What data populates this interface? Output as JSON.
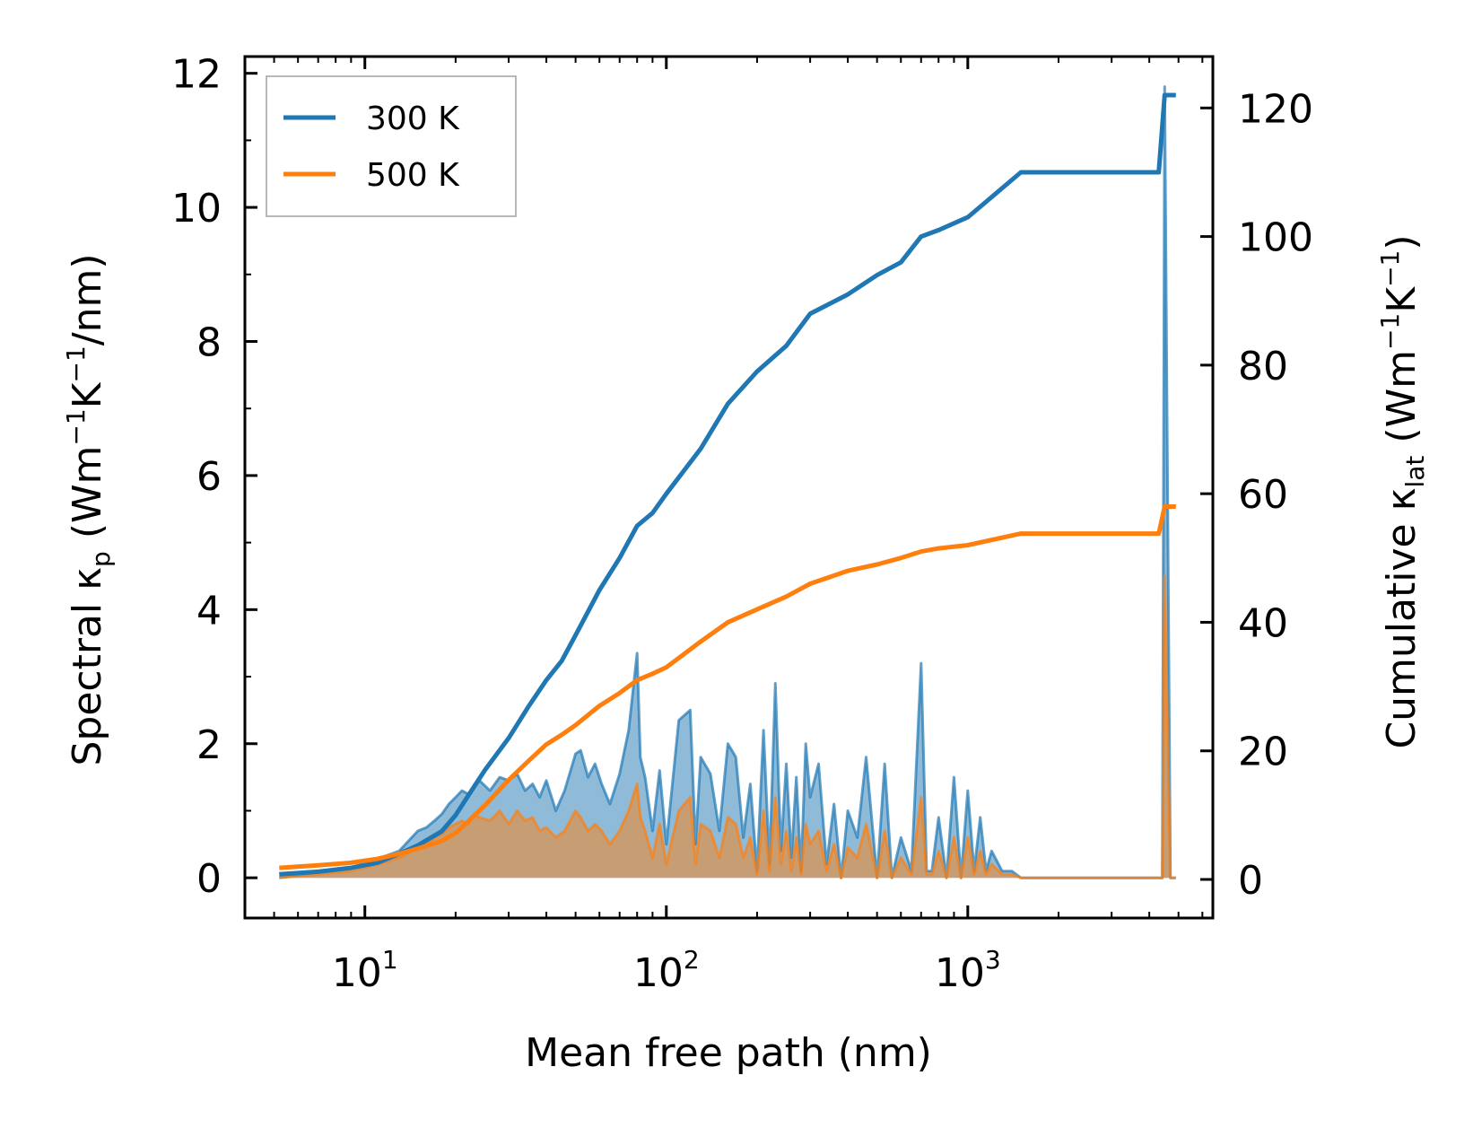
{
  "chart_data": {
    "type": "line",
    "xscale": "log",
    "xlabel": "Mean free path (nm)",
    "xlim": [
      4.0,
      6500
    ],
    "x_ticks": [
      {
        "value": 10,
        "base": "10",
        "exp": "1"
      },
      {
        "value": 100,
        "base": "10",
        "exp": "2"
      },
      {
        "value": 1000,
        "base": "10",
        "exp": "3"
      }
    ],
    "ylabel_left": {
      "prefix": "Spectral κ",
      "sub": "p",
      "mid1": " (Wm",
      "sup1": "−1",
      "mid2": "K",
      "sup2": "−1",
      "suffix": "/nm)"
    },
    "ylim_left": [
      -0.6,
      12.25
    ],
    "left_ticks": [
      "0",
      "2",
      "4",
      "6",
      "8",
      "10",
      "12"
    ],
    "ylabel_right": {
      "prefix": "Cumulative κ",
      "sub": "lat",
      "mid1": " (Wm",
      "sup1": "−1",
      "mid2": "K",
      "sup2": "−1",
      "suffix": ")"
    },
    "ylim_right": [
      -6,
      128
    ],
    "right_ticks": [
      "0",
      "20",
      "40",
      "60",
      "80",
      "100",
      "120"
    ],
    "legend": {
      "position": "top-left",
      "entries": [
        "300 K",
        "500 K"
      ]
    },
    "colors": {
      "t300": "#1f77b4",
      "t500": "#ff7f0e"
    },
    "series_cumulative": [
      {
        "name": "300 K",
        "axis": "right",
        "x": [
          5.2,
          7,
          9,
          11,
          13,
          15,
          18,
          20,
          22,
          25,
          30,
          35,
          40,
          45,
          50,
          60,
          70,
          80,
          90,
          100,
          130,
          160,
          200,
          250,
          300,
          400,
          500,
          600,
          700,
          800,
          1000,
          1500,
          4300,
          4500,
          4900
        ],
        "y": [
          0.8,
          1.2,
          1.8,
          2.6,
          4.0,
          5.3,
          7.5,
          10,
          13,
          17,
          22,
          27,
          31,
          34,
          38,
          45,
          50,
          55,
          57,
          60,
          67,
          74,
          79,
          83,
          88,
          91,
          94,
          96,
          100,
          101,
          103,
          110,
          110,
          122,
          122
        ]
      },
      {
        "name": "500 K",
        "axis": "right",
        "x": [
          5.2,
          7,
          9,
          11,
          13,
          15,
          18,
          20,
          22,
          25,
          30,
          35,
          40,
          45,
          50,
          60,
          70,
          80,
          90,
          100,
          130,
          160,
          200,
          250,
          300,
          400,
          500,
          600,
          700,
          800,
          1000,
          1500,
          4300,
          4500,
          4900
        ],
        "y": [
          1.8,
          2.2,
          2.6,
          3.2,
          4.0,
          4.8,
          6.0,
          7.2,
          9.0,
          11.5,
          15.5,
          18.5,
          21,
          22.5,
          24,
          27,
          29,
          31,
          32,
          33,
          37,
          40,
          42,
          44,
          46,
          48,
          49,
          50,
          51,
          51.5,
          52,
          53.8,
          53.8,
          58,
          58
        ]
      }
    ],
    "series_spectral": [
      {
        "name": "300 K",
        "axis": "left",
        "x": [
          5.2,
          7,
          9,
          11,
          13,
          15,
          16,
          17,
          18,
          19,
          20,
          21,
          22,
          23,
          24,
          26,
          28,
          30,
          32,
          34,
          36,
          38,
          40,
          43,
          46,
          50,
          52,
          55,
          58,
          61,
          65,
          70,
          75,
          80,
          82,
          85,
          90,
          95,
          100,
          110,
          120,
          125,
          130,
          140,
          150,
          160,
          170,
          180,
          190,
          200,
          210,
          220,
          230,
          240,
          250,
          260,
          270,
          280,
          290,
          300,
          320,
          340,
          360,
          380,
          400,
          430,
          460,
          500,
          530,
          560,
          600,
          650,
          700,
          730,
          760,
          800,
          850,
          900,
          950,
          1000,
          1050,
          1100,
          1150,
          1200,
          1300,
          1400,
          1500,
          4300,
          4420,
          4500,
          4700,
          4900
        ],
        "y": [
          0,
          0.08,
          0.15,
          0.28,
          0.4,
          0.7,
          0.75,
          0.85,
          0.95,
          1.1,
          1.2,
          1.3,
          1.25,
          1.35,
          1.45,
          1.3,
          1.5,
          1.45,
          1.55,
          1.3,
          1.4,
          1.2,
          1.45,
          1.0,
          1.3,
          1.85,
          1.9,
          1.5,
          1.7,
          1.4,
          1.1,
          1.55,
          2.2,
          3.35,
          1.8,
          1.5,
          0.7,
          1.6,
          0.5,
          2.35,
          2.5,
          0.5,
          1.8,
          1.55,
          0.7,
          2.0,
          1.8,
          0.6,
          1.4,
          0.1,
          2.2,
          0.2,
          2.9,
          0.4,
          1.7,
          0.3,
          1.5,
          0.1,
          2.0,
          1.2,
          1.7,
          0.2,
          1.1,
          0,
          1.0,
          0.6,
          1.8,
          0,
          1.7,
          0,
          0.6,
          0.1,
          3.2,
          0.1,
          0.1,
          0.9,
          0,
          1.5,
          0,
          1.3,
          0.1,
          0.9,
          0.1,
          0.4,
          0.1,
          0.1,
          0,
          0,
          0,
          11.8,
          0,
          0
        ]
      },
      {
        "name": "500 K",
        "axis": "left",
        "x": [
          5.2,
          7,
          9,
          11,
          13,
          15,
          16,
          17,
          18,
          19,
          20,
          21,
          22,
          23,
          24,
          26,
          28,
          30,
          32,
          34,
          36,
          38,
          40,
          43,
          46,
          50,
          52,
          55,
          58,
          61,
          65,
          70,
          75,
          80,
          82,
          85,
          90,
          95,
          100,
          110,
          120,
          125,
          130,
          140,
          150,
          160,
          170,
          180,
          190,
          200,
          210,
          220,
          230,
          240,
          250,
          260,
          270,
          280,
          290,
          300,
          320,
          340,
          360,
          380,
          400,
          430,
          460,
          500,
          530,
          560,
          600,
          650,
          700,
          730,
          760,
          800,
          850,
          900,
          950,
          1000,
          1050,
          1100,
          1150,
          1200,
          1300,
          1400,
          1500,
          4300,
          4420,
          4500,
          4700,
          4900
        ],
        "y": [
          0,
          0.05,
          0.1,
          0.2,
          0.3,
          0.45,
          0.5,
          0.6,
          0.65,
          0.75,
          0.8,
          0.85,
          0.8,
          0.95,
          0.9,
          0.85,
          1.0,
          0.8,
          1.0,
          0.85,
          0.9,
          0.7,
          0.75,
          0.6,
          0.7,
          1.0,
          0.9,
          0.7,
          0.8,
          0.7,
          0.5,
          0.7,
          1.0,
          1.4,
          0.9,
          0.7,
          0.3,
          0.8,
          0.2,
          1.0,
          1.2,
          0.2,
          0.8,
          0.7,
          0.3,
          0.9,
          0.8,
          0.3,
          0.6,
          0.05,
          1.0,
          0.1,
          1.2,
          0.2,
          0.7,
          0.1,
          0.6,
          0.05,
          0.8,
          0.5,
          0.7,
          0.1,
          0.5,
          0,
          0.45,
          0.3,
          0.8,
          0,
          0.7,
          0,
          0.3,
          0.05,
          1.2,
          0.05,
          0.05,
          0.4,
          0,
          0.6,
          0,
          0.6,
          0.05,
          0.4,
          0.05,
          0.2,
          0.05,
          0.05,
          0,
          0,
          0,
          4.5,
          0,
          0
        ]
      }
    ]
  }
}
